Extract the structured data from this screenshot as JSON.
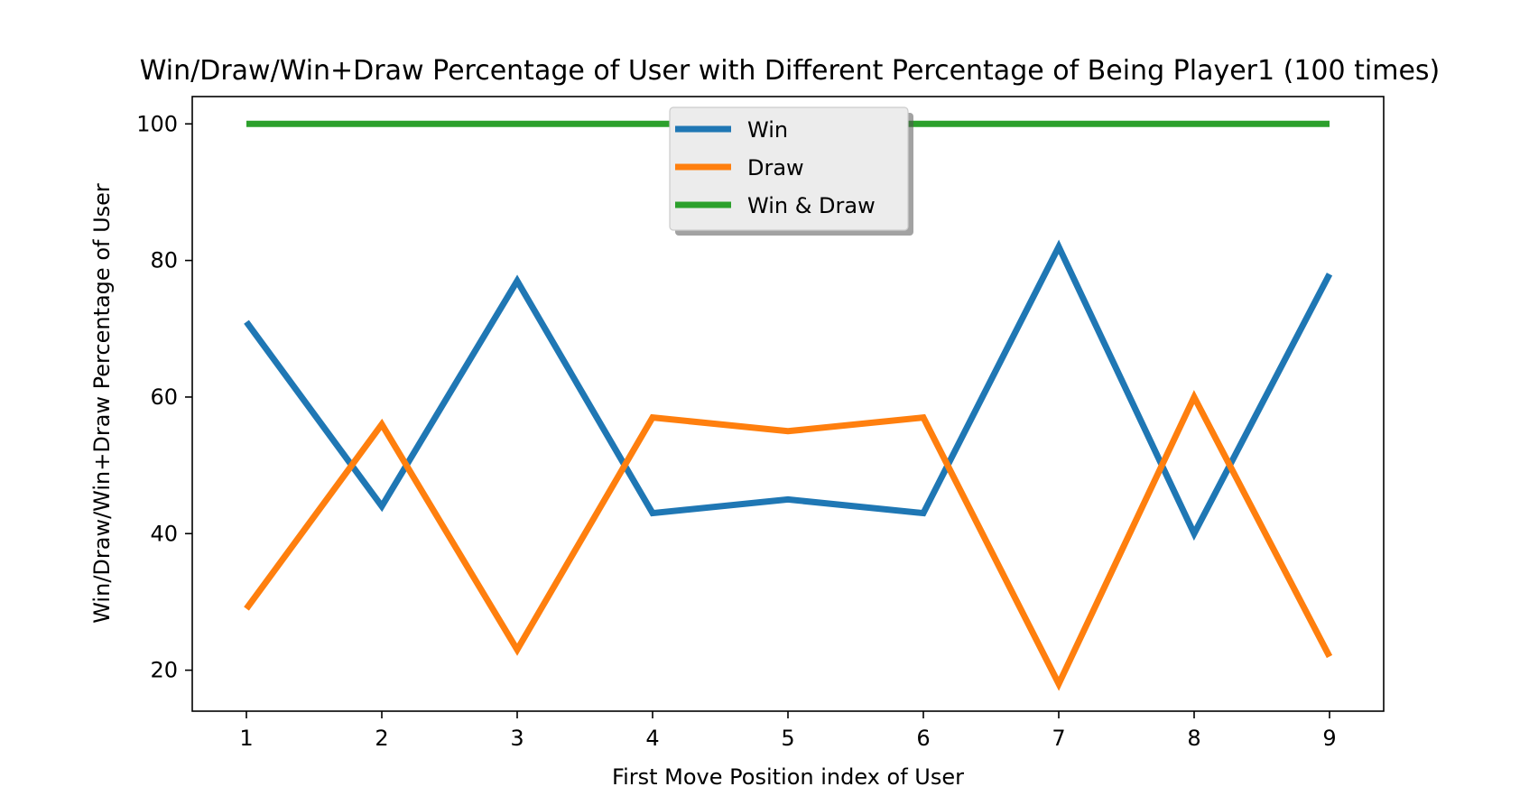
{
  "chart_data": {
    "type": "line",
    "title": "Win/Draw/Win+Draw Percentage of User with Different Percentage of Being Player1 (100 times)",
    "xlabel": "First Move Position index of User",
    "ylabel": "Win/Draw/Win+Draw Percentage of User",
    "x": [
      1,
      2,
      3,
      4,
      5,
      6,
      7,
      8,
      9
    ],
    "xlim": [
      0.6,
      9.4
    ],
    "ylim": [
      14,
      104
    ],
    "xticks": [
      1,
      2,
      3,
      4,
      5,
      6,
      7,
      8,
      9
    ],
    "yticks": [
      20,
      40,
      60,
      80,
      100
    ],
    "grid": false,
    "legend_position": "upper-center",
    "series": [
      {
        "name": "Win",
        "color": "#1f77b4",
        "values": [
          71,
          44,
          77,
          43,
          45,
          43,
          82,
          40,
          78
        ]
      },
      {
        "name": "Draw",
        "color": "#ff7f0e",
        "values": [
          29,
          56,
          23,
          57,
          55,
          57,
          18,
          60,
          22
        ]
      },
      {
        "name": "Win & Draw",
        "color": "#2ca02c",
        "values": [
          100,
          100,
          100,
          100,
          100,
          100,
          100,
          100,
          100
        ]
      }
    ]
  }
}
